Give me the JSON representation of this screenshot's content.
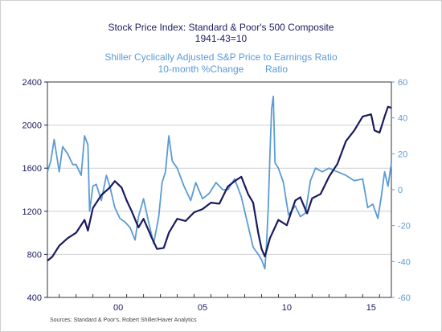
{
  "chart_data": {
    "type": "line",
    "title": "Stock Price Index: Standard & Poor's 500 Composite",
    "subtitle": "1941-43=10",
    "title2": "Shiller Cyclically Adjusted S&P Price to Earnings Ratio",
    "subtitle2_left": "10-month %Change",
    "subtitle2_right": "Ratio",
    "source": "Sources:  Standard & Poor's, Robert Shiller/Haver Analytics",
    "x_ticks": [
      "00",
      "05",
      "10",
      "15"
    ],
    "x_tick_years": [
      2000,
      2005,
      2010,
      2015
    ],
    "xlim": [
      1996.3,
      2016.7
    ],
    "y_left": {
      "ticks": [
        "2400",
        "2000",
        "1600",
        "1200",
        "800",
        "400"
      ],
      "values": [
        2400,
        2000,
        1600,
        1200,
        800,
        400
      ],
      "lim": [
        400,
        2400
      ]
    },
    "y_right": {
      "ticks": [
        "60",
        "40",
        "20",
        "0",
        "-20",
        "-40",
        "-60"
      ],
      "values": [
        60,
        40,
        20,
        0,
        -20,
        -40,
        -60
      ],
      "lim": [
        -60,
        60
      ]
    },
    "grid": true,
    "colors": {
      "sp500": "#1a1a60",
      "cape": "#5b9bd5",
      "title": "#1a1a60",
      "title2": "#5b9bd5"
    },
    "series": [
      {
        "axis": "left",
        "x": [
          1996.3,
          1996.6,
          1997.0,
          1997.5,
          1998.0,
          1998.5,
          1998.7,
          1999.0,
          1999.5,
          2000.0,
          2000.3,
          2000.7,
          2001.0,
          2001.3,
          2001.7,
          2002.0,
          2002.5,
          2002.8,
          2003.2,
          2003.5,
          2004.0,
          2004.5,
          2005.0,
          2005.5,
          2006.0,
          2006.5,
          2007.0,
          2007.5,
          2007.8,
          2008.2,
          2008.5,
          2008.8,
          2009.0,
          2009.2,
          2009.5,
          2010.0,
          2010.5,
          2011.0,
          2011.3,
          2011.7,
          2012.0,
          2012.5,
          2013.0,
          2013.5,
          2014.0,
          2014.5,
          2015.0,
          2015.5,
          2015.7,
          2016.0,
          2016.3,
          2016.5,
          2016.7
        ],
        "y": [
          740,
          780,
          880,
          950,
          1000,
          1120,
          1020,
          1230,
          1350,
          1420,
          1480,
          1420,
          1300,
          1200,
          1050,
          1130,
          950,
          850,
          860,
          1000,
          1130,
          1110,
          1190,
          1220,
          1280,
          1270,
          1430,
          1490,
          1520,
          1360,
          1280,
          1000,
          850,
          780,
          950,
          1120,
          1070,
          1300,
          1330,
          1180,
          1320,
          1360,
          1520,
          1640,
          1850,
          1950,
          2080,
          2100,
          1950,
          1930,
          2080,
          2170,
          2160
        ]
      },
      {
        "axis": "right",
        "x": [
          1996.3,
          1996.5,
          1996.7,
          1997.0,
          1997.2,
          1997.5,
          1997.8,
          1998.0,
          1998.3,
          1998.5,
          1998.7,
          1998.8,
          1999.0,
          1999.2,
          1999.5,
          1999.8,
          2000.0,
          2000.3,
          2000.6,
          2000.9,
          2001.2,
          2001.5,
          2001.7,
          2002.0,
          2002.3,
          2002.6,
          2002.9,
          2003.1,
          2003.3,
          2003.5,
          2003.7,
          2004.0,
          2004.4,
          2004.8,
          2005.1,
          2005.5,
          2005.9,
          2006.3,
          2006.7,
          2007.0,
          2007.4,
          2007.8,
          2008.2,
          2008.5,
          2008.8,
          2009.0,
          2009.2,
          2009.3,
          2009.4,
          2009.5,
          2009.6,
          2009.7,
          2009.8,
          2010.0,
          2010.3,
          2010.6,
          2011.0,
          2011.3,
          2011.6,
          2011.9,
          2012.2,
          2012.6,
          2013.0,
          2013.5,
          2014.0,
          2014.5,
          2015.0,
          2015.3,
          2015.6,
          2015.9,
          2016.1,
          2016.3,
          2016.5,
          2016.7
        ],
        "y": [
          10,
          16,
          28,
          10,
          24,
          20,
          14,
          14,
          8,
          30,
          25,
          -12,
          2,
          3,
          -6,
          8,
          2,
          -10,
          -16,
          -18,
          -21,
          -28,
          -15,
          -5,
          -18,
          -30,
          -15,
          4,
          10,
          30,
          16,
          12,
          2,
          -6,
          4,
          -5,
          -2,
          4,
          0,
          0,
          6,
          -4,
          -20,
          -32,
          -36,
          -39,
          -44,
          -30,
          -10,
          20,
          45,
          52,
          15,
          12,
          4,
          -14,
          -9,
          -15,
          -13,
          5,
          12,
          10,
          12,
          10,
          8,
          5,
          6,
          -10,
          -8,
          -16,
          -4,
          10,
          2,
          15
        ]
      }
    ]
  }
}
